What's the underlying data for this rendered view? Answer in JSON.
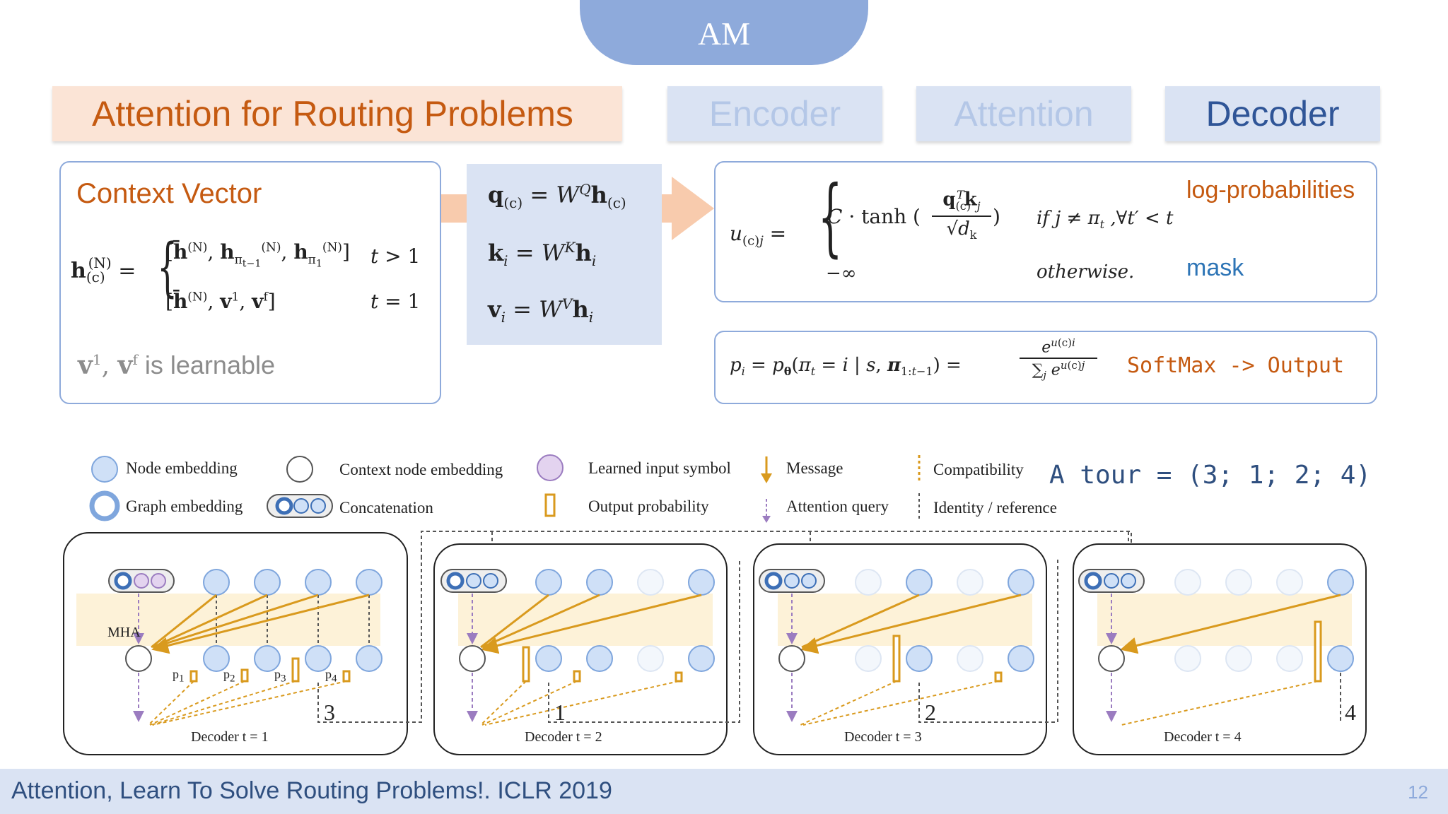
{
  "header": {
    "pill": "AM"
  },
  "tabs": {
    "main": "Attention for Routing Problems",
    "encoder": "Encoder",
    "attention": "Attention",
    "decoder": "Decoder"
  },
  "context": {
    "title": "Context Vector",
    "learnable_suffix": "is learnable"
  },
  "qkv": {},
  "logits": {
    "annot_logprob": "log-probabilities",
    "annot_mask": "mask",
    "cond1": "if j ≠ π",
    "cond2": "otherwise."
  },
  "softmax": {
    "label": "SoftMax -> Output"
  },
  "legend": {
    "node_embedding": "Node embedding",
    "graph_embedding": "Graph embedding",
    "context_node_embedding": "Context node embedding",
    "concatenation": "Concatenation",
    "learned_input_symbol": "Learned input symbol",
    "output_probability": "Output probability",
    "message": "Message",
    "attention_query": "Attention query",
    "compatibility": "Compatibility",
    "identity_reference": "Identity / reference"
  },
  "tour": "A tour = (3; 1; 2; 4)",
  "decoders": [
    {
      "label": "Decoder t = 1",
      "step": "3"
    },
    {
      "label": "Decoder t = 2",
      "step": "1"
    },
    {
      "label": "Decoder t = 3",
      "step": "2"
    },
    {
      "label": "Decoder t = 4",
      "step": "4"
    }
  ],
  "decoder_labels": {
    "mha": "MHA",
    "p1": "p",
    "p2": "p",
    "p3": "p",
    "p4": "p"
  },
  "footer": {
    "citation": "Attention, Learn To Solve Routing Problems!. ICLR 2019",
    "page": "12"
  },
  "colors": {
    "accent_blue": "#8eaadb",
    "orange": "#c55a11",
    "gold": "#d99a1e",
    "purple": "#9b7cc0"
  }
}
